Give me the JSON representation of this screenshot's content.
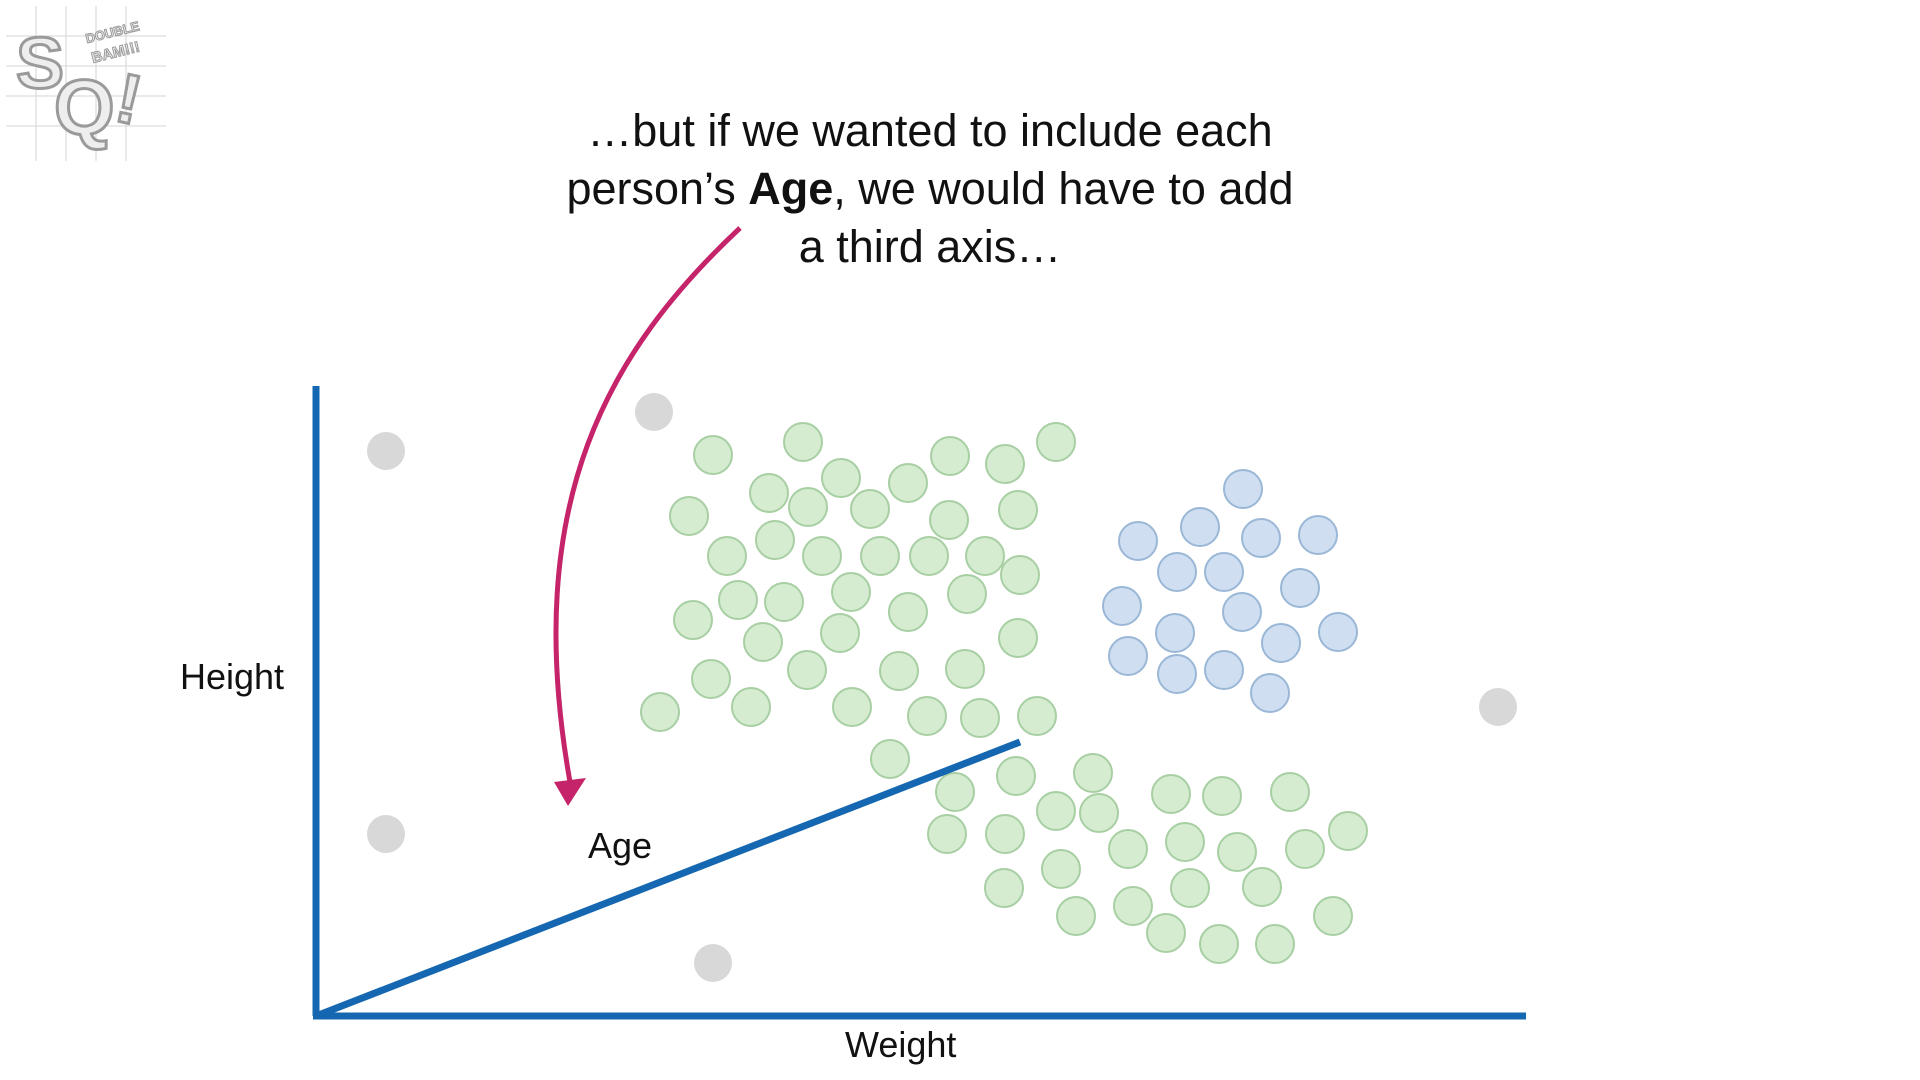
{
  "caption": {
    "line1": "…but if we wanted to include each",
    "line2_prefix": "person’s ",
    "line2_bold": "Age",
    "line2_suffix": ", we would have to add",
    "line3": "a third axis…"
  },
  "axes": {
    "y_label": "Height",
    "x_label": "Weight",
    "z_label": "Age"
  },
  "logo": {
    "name": "StatQuest",
    "tagline": "DOUBLE BAM!!!",
    "letters": "SQ!"
  },
  "colors": {
    "axis": "#1467b0",
    "arrow": "#c6246a",
    "cluster_green_fill": "#d5ecd0",
    "cluster_green_stroke": "#a8cfa3",
    "cluster_blue_fill": "#cfdff1",
    "cluster_blue_stroke": "#9bb7d6",
    "outlier_fill": "#d8d8d8"
  }
}
